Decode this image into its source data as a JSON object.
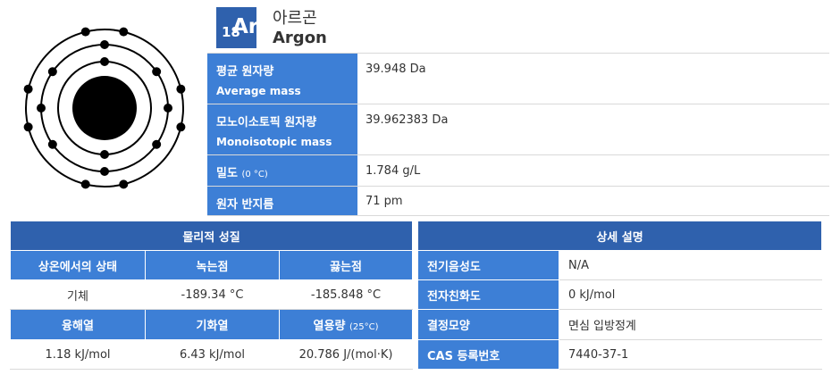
{
  "element": {
    "atomic_number": "18",
    "symbol": "Ar",
    "name_ko": "아르곤",
    "name_en": "Argon",
    "electron_shells": [
      2,
      8,
      8
    ]
  },
  "properties": {
    "average_mass": {
      "label_ko": "평균 원자량",
      "label_en": "Average mass",
      "value": "39.948 Da"
    },
    "monoisotopic_mass": {
      "label_ko": "모노이소토픽 원자량",
      "label_en": "Monoisotopic mass",
      "value": "39.962383 Da"
    },
    "density": {
      "label_ko": "밀도",
      "label_note": "(0 °C)",
      "value": "1.784 g/L"
    },
    "atomic_radius": {
      "label_ko": "원자 반지름",
      "value": "71 pm"
    }
  },
  "physical": {
    "title": "물리적 성질",
    "state_header": "상온에서의 상태",
    "melting_header": "녹는점",
    "boiling_header": "끓는점",
    "state_value": "기체",
    "melting_value": "-189.34 °C",
    "boiling_value": "-185.848 °C",
    "fusion_header": "융해열",
    "vaporization_header": "기화열",
    "heat_capacity_header": "열용량",
    "heat_capacity_note": "(25°C)",
    "fusion_value": "1.18 kJ/mol",
    "vaporization_value": "6.43 kJ/mol",
    "heat_capacity_value": "20.786 J/(mol·K)"
  },
  "detail": {
    "title": "상세 설명",
    "rows": [
      {
        "label": "전기음성도",
        "value": "N/A"
      },
      {
        "label": "전자친화도",
        "value": "0 kJ/mol"
      },
      {
        "label": "결정모양",
        "value": "면심 입방정계"
      },
      {
        "label": "CAS 등록번호",
        "value": "7440-37-1"
      }
    ]
  },
  "colors": {
    "header_blue": "#2f61ad",
    "label_blue": "#3d7fd6"
  }
}
